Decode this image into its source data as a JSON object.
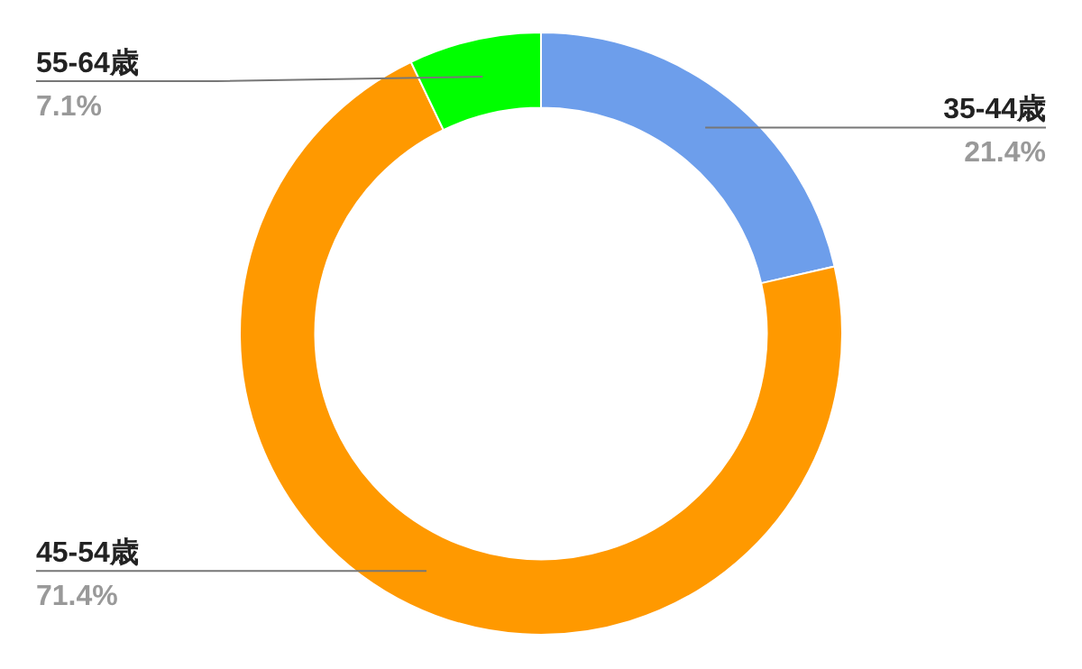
{
  "chart_data": {
    "type": "donut",
    "categories": [
      "35-44歳",
      "45-54歳",
      "55-64歳"
    ],
    "values": [
      21.4,
      71.4,
      7.1
    ],
    "colors": [
      "#6d9eeb",
      "#ff9900",
      "#00ff00"
    ],
    "value_labels": [
      "21.4%",
      "71.4%",
      "7.1%"
    ]
  }
}
